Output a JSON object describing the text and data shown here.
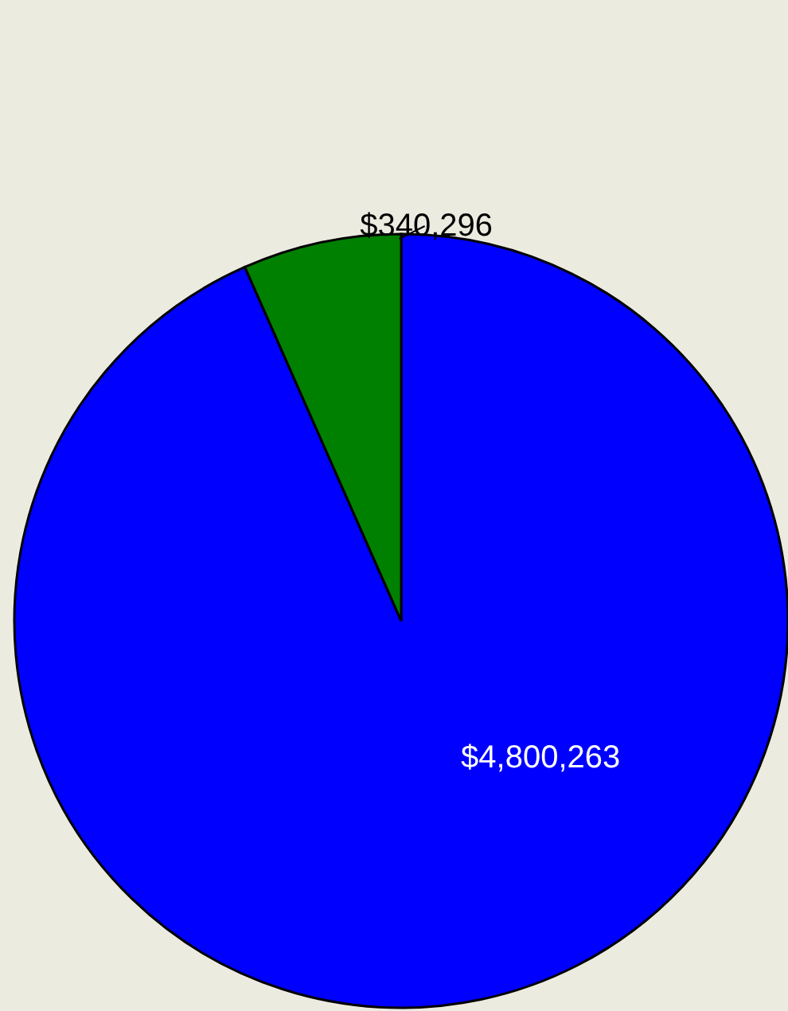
{
  "chart_data": {
    "type": "pie",
    "categories": [
      null,
      null
    ],
    "values": [
      4800263,
      340296
    ],
    "colors": [
      "#0000ff",
      "#008000"
    ],
    "value_labels": [
      "$4,800,263",
      "$340,296"
    ]
  }
}
